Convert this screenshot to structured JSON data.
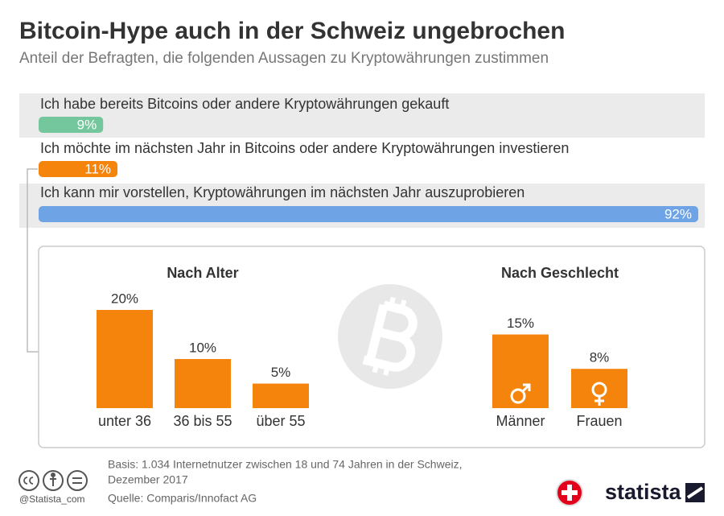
{
  "header": {
    "title": "Bitcoin-Hype auch in der Schweiz ungebrochen",
    "subtitle": "Anteil der Befragten, die folgenden Aussagen zu Kryptowährungen zustimmen"
  },
  "chart_data": [
    {
      "type": "bar",
      "orientation": "horizontal",
      "categories": [
        "Ich habe bereits Bitcoins oder andere Kryptowährungen gekauft",
        "Ich möchte im nächsten Jahr in Bitcoins oder andere Kryptowährungen investieren",
        "Ich kann mir vorstellen, Kryptowährungen im nächsten Jahr auszuprobieren"
      ],
      "values": [
        9,
        11,
        92
      ],
      "value_labels": [
        "9%",
        "11%",
        "92%"
      ],
      "colors": [
        "#74c69d",
        "#f5840c",
        "#6ea3e6"
      ]
    },
    {
      "type": "bar",
      "orientation": "vertical",
      "title": "Nach Alter",
      "categories": [
        "unter 36",
        "36 bis 55",
        "über 55"
      ],
      "values": [
        20,
        10,
        5
      ],
      "value_labels": [
        "20%",
        "10%",
        "5%"
      ],
      "color": "#f5840c"
    },
    {
      "type": "bar",
      "orientation": "vertical",
      "title": "Nach Geschlecht",
      "categories": [
        "Männer",
        "Frauen"
      ],
      "values": [
        15,
        8
      ],
      "value_labels": [
        "15%",
        "8%"
      ],
      "color": "#f5840c"
    }
  ],
  "footer": {
    "basis": [
      "Basis: 1.034 Internetnutzer zwischen 18 und 74 Jahren in der Schweiz,",
      "Dezember 2017"
    ],
    "source": "Quelle: Comparis/Innofact AG",
    "handle": "@Statista_com",
    "brand": "statista"
  }
}
